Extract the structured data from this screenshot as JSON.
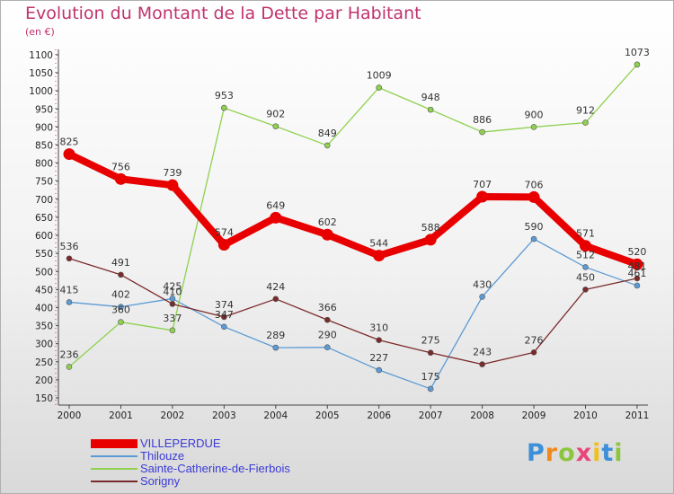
{
  "chart_data": {
    "type": "line",
    "title": "Evolution du Montant de la Dette par Habitant",
    "subtitle": "(en €)",
    "x": [
      "2000",
      "2001",
      "2002",
      "2003",
      "2004",
      "2005",
      "2006",
      "2007",
      "2008",
      "2009",
      "2010",
      "2011"
    ],
    "ylim": [
      150,
      1100
    ],
    "yticks": [
      150,
      200,
      250,
      300,
      350,
      400,
      450,
      500,
      550,
      600,
      650,
      700,
      750,
      800,
      850,
      900,
      950,
      1000,
      1050,
      1100
    ],
    "grid": false,
    "legend_placement": "bottom-left",
    "series": [
      {
        "name": "VILLEPERDUE",
        "color": "#e80000",
        "values": [
          825,
          756,
          739,
          574,
          649,
          602,
          544,
          588,
          707,
          706,
          571,
          520
        ]
      },
      {
        "name": "Thilouze",
        "color": "#5b9bd5",
        "values": [
          415,
          402,
          425,
          347,
          289,
          290,
          227,
          175,
          430,
          590,
          512,
          461
        ]
      },
      {
        "name": "Sainte-Catherine-de-Fierbois",
        "color": "#8fd14f",
        "values": [
          236,
          360,
          337,
          953,
          902,
          849,
          1009,
          948,
          886,
          900,
          912,
          1073
        ]
      },
      {
        "name": "Sorigny",
        "color": "#7b2a2a",
        "values": [
          536,
          491,
          410,
          374,
          424,
          366,
          310,
          275,
          243,
          276,
          450,
          481
        ]
      }
    ]
  },
  "brand": {
    "letters": [
      "P",
      "r",
      "o",
      "x",
      "i",
      "t",
      "i"
    ],
    "colors": [
      "#3c8fd8",
      "#f08a1c",
      "#8cc63e",
      "#e8457a",
      "#f0c020",
      "#3c8fd8",
      "#8cc63e"
    ]
  }
}
